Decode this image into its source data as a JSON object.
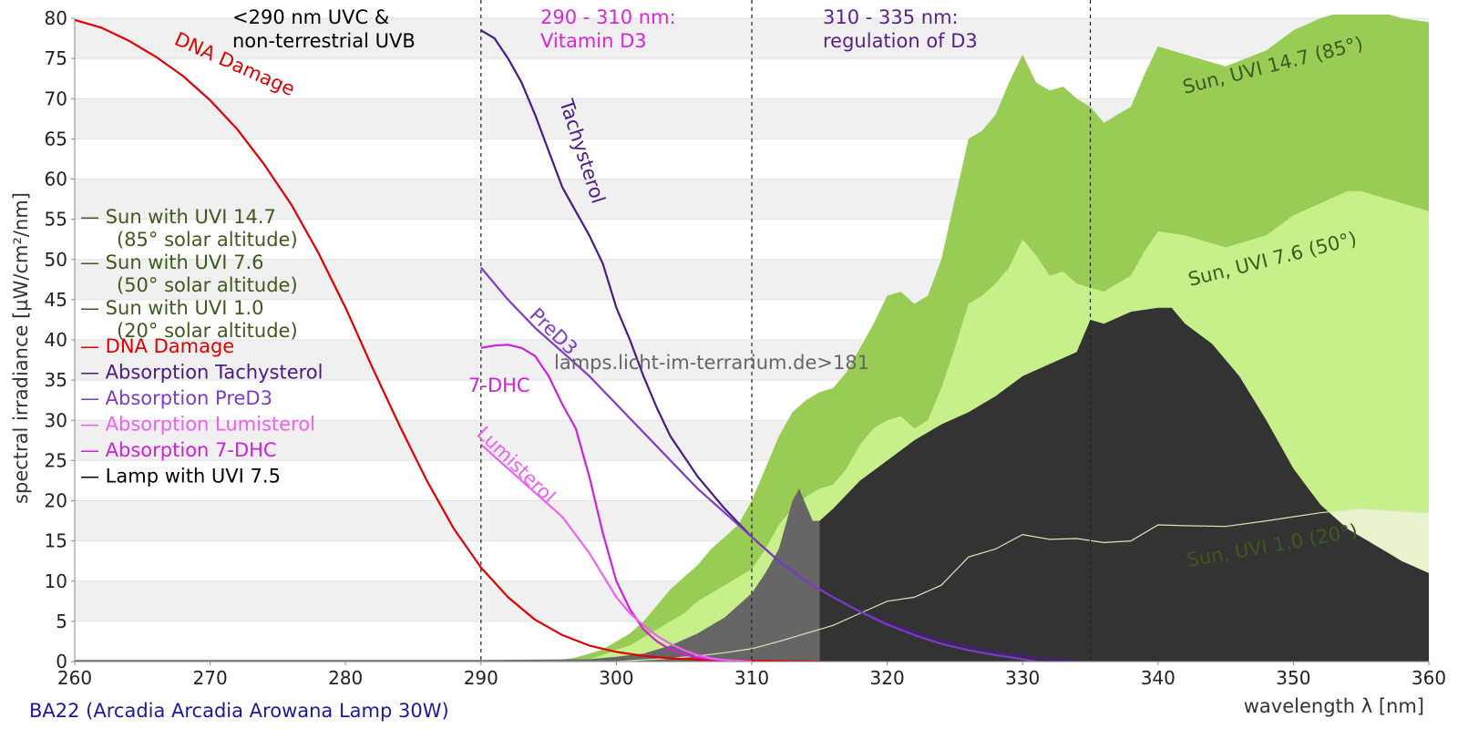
{
  "chart_data": {
    "type": "area",
    "x_axis": {
      "label": "wavelength λ [nm]",
      "range": [
        260,
        360
      ],
      "ticks": [
        260,
        270,
        280,
        290,
        300,
        310,
        320,
        330,
        340,
        350,
        360
      ]
    },
    "y_axis": {
      "label": "spectral irradiance [µW/cm²/nm]",
      "range": [
        0,
        80
      ],
      "ticks": [
        0,
        5,
        10,
        15,
        20,
        25,
        30,
        35,
        40,
        45,
        50,
        55,
        60,
        65,
        70,
        75,
        80
      ]
    },
    "grid": "horizontal bands",
    "footer": "BA22 (Arcadia Arcadia Arowana Lamp 30W)",
    "watermark": "lamps.licht-im-terrarium.de>181",
    "region_dividers": [
      290,
      310,
      335
    ],
    "region_labels": [
      {
        "text": "<290 nm UVC &\nnon-terrestrial UVB",
        "color": "#000000"
      },
      {
        "text": "290 - 310 nm:\nVitamin D3",
        "color": "#dd22dd"
      },
      {
        "text": "310 - 335 nm:\nregulation of D3",
        "color": "#5a1e8c"
      }
    ],
    "curve_labels": [
      {
        "text": "DNA Damage",
        "color": "#e00000"
      },
      {
        "text": "Tachysterol",
        "color": "#4b1a82"
      },
      {
        "text": "PreD3",
        "color": "#7a3cc8"
      },
      {
        "text": "7-DHC",
        "color": "#d020d8"
      },
      {
        "text": "Lumisterol",
        "color": "#f060f0"
      },
      {
        "text": "Sun, UVI 14.7 (85°)",
        "color": "#3d5a1e"
      },
      {
        "text": "Sun, UVI 7.6 (50°)",
        "color": "#3d5a1e"
      },
      {
        "text": "Sun, UVI 1.0 (20°)",
        "color": "#3d5a1e"
      }
    ],
    "legend": {
      "placement": "left",
      "entries": [
        {
          "label": "— Sun with UVI 14.7",
          "sub": "(85° solar altitude)",
          "color": "#3d5a1e"
        },
        {
          "label": "— Sun with UVI 7.6",
          "sub": "(50° solar altitude)",
          "color": "#3d5a1e"
        },
        {
          "label": "— Sun with UVI 1.0",
          "sub": "(20° solar altitude)",
          "color": "#3d5a1e"
        },
        {
          "label": "— DNA Damage",
          "color": "#e00000"
        },
        {
          "label": "— Absorption Tachysterol",
          "color": "#4b1a82"
        },
        {
          "label": "— Absorption PreD3",
          "color": "#7a3cc8"
        },
        {
          "label": "— Absorption Lumisterol",
          "color": "#f060f0"
        },
        {
          "label": "— Absorption 7-DHC",
          "color": "#d020d8"
        },
        {
          "label": "— Lamp with UVI 7.5",
          "color": "#000000"
        }
      ]
    },
    "series": [
      {
        "name": "Sun with UVI 14.7",
        "kind": "area",
        "color": "#99cc55",
        "x": [
          290,
          295,
          297,
          299,
          300,
          301,
          302,
          303,
          304,
          305,
          306,
          307,
          308,
          309,
          310,
          311,
          312,
          313,
          314,
          315,
          316,
          317,
          318,
          319,
          320,
          321,
          322,
          323,
          324,
          325,
          326,
          327,
          328,
          329,
          330,
          331,
          332,
          333,
          334,
          335,
          336,
          337,
          338,
          339,
          340,
          342,
          345,
          348,
          350,
          352,
          354,
          355,
          356,
          358,
          360
        ],
        "y": [
          0,
          0,
          0.5,
          1.5,
          2.5,
          3.5,
          5,
          7,
          9,
          10.5,
          12,
          14,
          15.5,
          17,
          20,
          24,
          28,
          31,
          32.5,
          33.5,
          34,
          36,
          39,
          42,
          45.5,
          46,
          44.5,
          45.5,
          50,
          57.5,
          65,
          66,
          68,
          72,
          75.5,
          72,
          71,
          71.5,
          70,
          69,
          67,
          68,
          69,
          73,
          76.5,
          75.5,
          74,
          76,
          78.5,
          80,
          81,
          82,
          81,
          80,
          79.5
        ]
      },
      {
        "name": "Sun with UVI 7.6",
        "kind": "area",
        "color": "#c8f08a",
        "x": [
          290,
          296,
          298,
          299,
          300,
          301,
          302,
          303,
          304,
          305,
          306,
          307,
          308,
          309,
          310,
          311,
          312,
          313,
          314,
          315,
          316,
          317,
          318,
          319,
          320,
          321,
          322,
          323,
          324,
          325,
          326,
          327,
          328,
          329,
          330,
          331,
          332,
          333,
          334,
          335,
          336,
          337,
          338,
          339,
          340,
          342,
          345,
          348,
          350,
          352,
          354,
          355,
          356,
          358,
          360
        ],
        "y": [
          0,
          0,
          0.3,
          0.8,
          1.5,
          2,
          3,
          4,
          5,
          6,
          7.5,
          8.5,
          9.5,
          10.5,
          11.5,
          14,
          17,
          19,
          20.5,
          21.5,
          22,
          24,
          27,
          29,
          30,
          30.5,
          29,
          30,
          34,
          39,
          44.5,
          45.5,
          47,
          49,
          52.5,
          50.5,
          48,
          48.5,
          47,
          46.5,
          46,
          47,
          48,
          51,
          53.5,
          53,
          51.5,
          53,
          55.5,
          57,
          58.5,
          58.5,
          58,
          57,
          56
        ]
      },
      {
        "name": "Sun with UVI 1.0",
        "kind": "area",
        "color": "#e6f3cc",
        "x": [
          290,
          300,
          302,
          304,
          306,
          308,
          310,
          312,
          314,
          316,
          318,
          320,
          322,
          324,
          326,
          328,
          330,
          332,
          334,
          336,
          338,
          340,
          342,
          345,
          348,
          350,
          352,
          355,
          358,
          360
        ],
        "y": [
          0,
          0,
          0.2,
          0.4,
          0.7,
          1.1,
          1.6,
          2.5,
          3.5,
          4.5,
          6,
          7.5,
          8,
          9.5,
          13,
          14,
          15.8,
          15.2,
          15.3,
          14.8,
          15,
          17,
          16.9,
          16.8,
          17.5,
          18,
          18.5,
          19,
          18.7,
          18.5
        ]
      },
      {
        "name": "Lamp with UVI 7.5",
        "kind": "area",
        "color": "#333333",
        "color_below_315": "#666666",
        "x": [
          260,
          290,
          298,
          300,
          302,
          304,
          306,
          308,
          309,
          310,
          311,
          312,
          313,
          313.5,
          314,
          314.5,
          315,
          316,
          318,
          320,
          322,
          324,
          326,
          328,
          330,
          332,
          334,
          335,
          336,
          338,
          340,
          341,
          342,
          344,
          346,
          348,
          350,
          352,
          354,
          356,
          358,
          360
        ],
        "y": [
          0.2,
          0.2,
          0.3,
          0.6,
          1,
          2,
          3.5,
          5.5,
          7,
          8.5,
          11,
          14,
          20,
          21.5,
          19.5,
          17.5,
          17.5,
          19,
          22.5,
          25,
          27.5,
          29.5,
          31,
          33,
          35.5,
          37,
          38.5,
          42.5,
          42,
          43.5,
          44,
          44,
          42,
          39.5,
          35.5,
          30,
          24,
          19.5,
          16.5,
          14.5,
          12.5,
          11
        ]
      },
      {
        "name": "DNA Damage",
        "kind": "line",
        "color": "#e00000",
        "x": [
          260,
          262,
          264,
          266,
          268,
          270,
          272,
          274,
          276,
          278,
          280,
          282,
          284,
          286,
          288,
          290,
          292,
          294,
          296,
          298,
          300,
          302,
          304,
          306,
          308,
          310,
          312,
          314,
          315
        ],
        "y": [
          79.8,
          78.8,
          77.2,
          75.2,
          72.8,
          69.8,
          66.2,
          61.8,
          56.8,
          50.8,
          44,
          36.5,
          29.3,
          22.5,
          16.5,
          11.7,
          8,
          5.2,
          3.3,
          2,
          1.2,
          0.7,
          0.4,
          0.25,
          0.15,
          0.1,
          0.06,
          0.03,
          0
        ]
      },
      {
        "name": "Absorption Tachysterol",
        "kind": "line",
        "color": "#4b1a82",
        "x": [
          290,
          291,
          292,
          293,
          294,
          295,
          296,
          297,
          298,
          299,
          300,
          301,
          302,
          303,
          304,
          306,
          308,
          310,
          312,
          314,
          316,
          318,
          320,
          322,
          324,
          326,
          328,
          330,
          332,
          334
        ],
        "y": [
          78.5,
          77.5,
          75,
          72,
          68,
          63.5,
          59,
          56,
          53,
          49.5,
          44,
          40,
          35.5,
          31.5,
          28,
          23,
          19,
          15.5,
          12.5,
          10,
          8,
          6.2,
          4.8,
          3.6,
          2.6,
          1.8,
          1.2,
          0.7,
          0.3,
          0
        ]
      },
      {
        "name": "Absorption PreD3",
        "kind": "line",
        "color": "#7a3cc8",
        "x": [
          290,
          292,
          294,
          296,
          298,
          300,
          302,
          304,
          306,
          308,
          310,
          312,
          314,
          316,
          318,
          320,
          322,
          324,
          326,
          328,
          330,
          331
        ],
        "y": [
          49,
          45,
          41.5,
          38.5,
          35.5,
          32,
          28.5,
          25,
          21.5,
          18.5,
          15.5,
          12.5,
          10,
          8,
          6.2,
          4.6,
          3.3,
          2.2,
          1.4,
          0.8,
          0.3,
          0
        ]
      },
      {
        "name": "Absorption 7-DHC",
        "kind": "line",
        "color": "#d020d8",
        "x": [
          290,
          291,
          292,
          293,
          294,
          295,
          296,
          297,
          298,
          299,
          300,
          301,
          302,
          303,
          304,
          305,
          306,
          307,
          308,
          309,
          310
        ],
        "y": [
          39,
          39.3,
          39.4,
          39,
          38,
          35.5,
          32,
          29,
          23,
          16,
          10,
          6.5,
          4,
          2.5,
          1.5,
          0.9,
          0.5,
          0.3,
          0.1,
          0.05,
          0
        ]
      },
      {
        "name": "Absorption Lumisterol",
        "kind": "line",
        "color": "#f060f0",
        "x": [
          290,
          292,
          294,
          296,
          298,
          300,
          301,
          302,
          303,
          304,
          305,
          306,
          307,
          308,
          309,
          310
        ],
        "y": [
          27,
          24,
          21,
          18,
          13.5,
          8,
          6,
          4.5,
          3.2,
          2.2,
          1.4,
          0.8,
          0.4,
          0.2,
          0.1,
          0
        ]
      }
    ]
  }
}
